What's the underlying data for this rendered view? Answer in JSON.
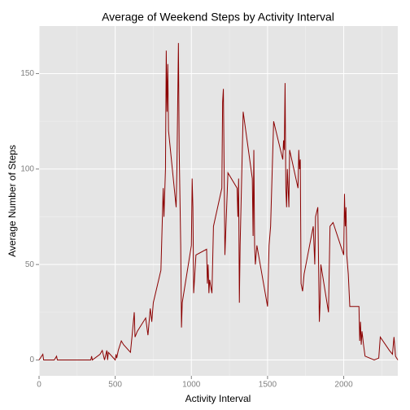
{
  "chart_data": {
    "type": "line",
    "title": "Average of Weekend Steps by Activity Interval",
    "x_label": "Activity Interval",
    "y_label": "Average Number of Steps",
    "x": [
      0,
      25,
      30,
      100,
      115,
      120,
      300,
      340,
      345,
      350,
      400,
      415,
      430,
      445,
      450,
      455,
      500,
      505,
      510,
      520,
      540,
      555,
      600,
      610,
      625,
      630,
      645,
      700,
      715,
      730,
      740,
      750,
      800,
      815,
      820,
      830,
      835,
      840,
      845,
      850,
      900,
      905,
      915,
      920,
      930,
      935,
      940,
      1000,
      1005,
      1010,
      1015,
      1030,
      1100,
      1105,
      1110,
      1115,
      1120,
      1135,
      1145,
      1200,
      1205,
      1210,
      1215,
      1220,
      1240,
      1300,
      1305,
      1310,
      1315,
      1320,
      1340,
      1400,
      1405,
      1410,
      1415,
      1420,
      1430,
      1500,
      1510,
      1520,
      1540,
      1600,
      1605,
      1610,
      1615,
      1620,
      1625,
      1630,
      1640,
      1645,
      1700,
      1705,
      1710,
      1715,
      1720,
      1730,
      1740,
      1800,
      1805,
      1810,
      1815,
      1830,
      1840,
      1845,
      1850,
      1900,
      1910,
      1930,
      2000,
      2005,
      2010,
      2015,
      2020,
      2030,
      2040,
      2100,
      2105,
      2110,
      2115,
      2120,
      2130,
      2140,
      2200,
      2230,
      2240,
      2300,
      2320,
      2330,
      2340,
      2355
    ],
    "series": [
      {
        "name": "Average Number of Steps",
        "color": "#8B0000",
        "values": [
          0,
          3,
          0,
          0,
          2,
          0,
          0,
          0,
          2,
          0,
          3,
          5,
          0,
          5,
          0,
          4,
          0,
          3,
          1,
          5,
          10,
          8,
          4,
          12,
          25,
          12,
          15,
          22,
          13,
          27,
          20,
          30,
          47,
          90,
          75,
          100,
          162,
          130,
          155,
          120,
          80,
          100,
          166,
          110,
          60,
          17,
          30,
          60,
          95,
          80,
          35,
          55,
          58,
          40,
          50,
          35,
          42,
          35,
          70,
          90,
          135,
          142,
          100,
          55,
          98,
          90,
          75,
          95,
          30,
          60,
          130,
          95,
          65,
          110,
          60,
          50,
          60,
          28,
          60,
          70,
          125,
          105,
          115,
          110,
          145,
          90,
          80,
          100,
          80,
          110,
          90,
          110,
          100,
          105,
          40,
          36,
          45,
          70,
          60,
          50,
          75,
          80,
          20,
          30,
          50,
          25,
          70,
          72,
          55,
          87,
          70,
          80,
          55,
          45,
          28,
          28,
          10,
          20,
          8,
          15,
          8,
          2,
          0,
          1,
          12,
          5,
          3,
          12,
          2,
          0
        ]
      }
    ],
    "xlim": [
      0,
      2355
    ],
    "xticks": [
      0,
      500,
      1000,
      1500,
      2000
    ],
    "ylim": [
      -8.3,
      174.9
    ],
    "yticks": [
      0,
      50,
      100,
      150
    ],
    "grid": true,
    "background": "#E5E5E5"
  }
}
